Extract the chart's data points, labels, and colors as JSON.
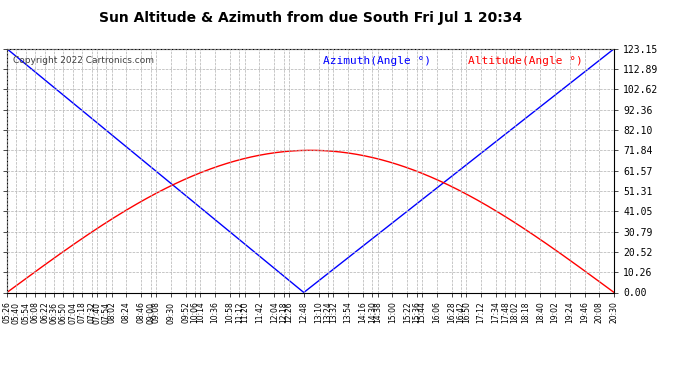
{
  "title": "Sun Altitude & Azimuth from due South Fri Jul 1 20:34",
  "copyright": "Copyright 2022 Cartronics.com",
  "legend_azimuth": "Azimuth(Angle °)",
  "legend_altitude": "Altitude(Angle °)",
  "yticks": [
    0.0,
    10.26,
    20.52,
    30.79,
    41.05,
    51.31,
    61.57,
    71.84,
    82.1,
    92.36,
    102.62,
    112.89,
    123.15
  ],
  "ymax": 123.15,
  "ymin": 0.0,
  "azimuth_color": "#0000ff",
  "altitude_color": "#ff0000",
  "bg_color": "#ffffff",
  "grid_color": "#b0b0b0",
  "title_color": "#000000",
  "copyright_color": "#404040",
  "t_rise": 326,
  "t_noon": 768,
  "t_set": 1230,
  "alt_max": 71.84,
  "az_max": 123.15,
  "time_labels": [
    "05:26",
    "05:40",
    "05:54",
    "06:08",
    "06:22",
    "06:36",
    "06:50",
    "07:04",
    "07:18",
    "07:32",
    "07:40",
    "07:54",
    "08:02",
    "08:24",
    "08:46",
    "09:00",
    "09:08",
    "09:30",
    "09:52",
    "10:06",
    "10:14",
    "10:36",
    "10:58",
    "11:12",
    "11:20",
    "11:42",
    "12:04",
    "12:18",
    "12:26",
    "12:48",
    "13:10",
    "13:24",
    "13:32",
    "13:54",
    "14:16",
    "14:30",
    "14:38",
    "15:00",
    "15:22",
    "15:36",
    "15:44",
    "16:06",
    "16:28",
    "16:42",
    "16:50",
    "17:12",
    "17:34",
    "17:48",
    "18:02",
    "18:18",
    "18:40",
    "19:02",
    "19:24",
    "19:46",
    "20:08",
    "20:30"
  ]
}
